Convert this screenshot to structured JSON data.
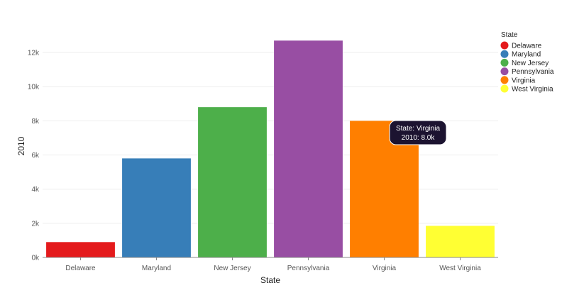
{
  "chart_data": {
    "type": "bar",
    "xlabel": "State",
    "ylabel": "2010",
    "categories": [
      "Delaware",
      "Maryland",
      "New Jersey",
      "Pennsylvania",
      "Virginia",
      "West Virginia"
    ],
    "values": [
      900,
      5800,
      8800,
      12700,
      8000,
      1850
    ],
    "colors": [
      "#e41a1c",
      "#377eb8",
      "#4daf4a",
      "#984ea3",
      "#ff7f00",
      "#ffff33"
    ],
    "ylim": [
      0,
      13000
    ],
    "yticks": [
      0,
      2000,
      4000,
      6000,
      8000,
      10000,
      12000
    ],
    "ytick_labels": [
      "0k",
      "2k",
      "4k",
      "6k",
      "8k",
      "10k",
      "12k"
    ],
    "grid": true,
    "legend": {
      "title": "State",
      "placement": "top-right",
      "entries": [
        "Delaware",
        "Maryland",
        "New Jersey",
        "Pennsylvania",
        "Virginia",
        "West Virginia"
      ]
    },
    "tooltip": {
      "category": "Virginia",
      "line1": "State: Virginia",
      "line2": "2010: 8.0k"
    }
  }
}
